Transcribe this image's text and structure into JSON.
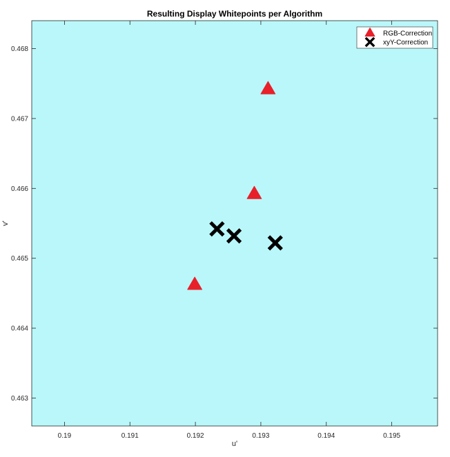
{
  "chart_data": {
    "type": "scatter",
    "title": "Resulting Display Whitepoints per Algorithm",
    "xlabel": "u'",
    "ylabel": "v'",
    "xlim": [
      0.1895,
      0.1957
    ],
    "ylim": [
      0.4626,
      0.4684
    ],
    "xticks": [
      0.19,
      0.191,
      0.192,
      0.193,
      0.194,
      0.195
    ],
    "yticks": [
      0.463,
      0.464,
      0.465,
      0.466,
      0.467,
      0.468
    ],
    "xtick_labels": [
      "0.19",
      "0.191",
      "0.192",
      "0.193",
      "0.194",
      "0.195"
    ],
    "ytick_labels": [
      "0.463",
      "0.464",
      "0.465",
      "0.466",
      "0.467",
      "0.468"
    ],
    "grid": false,
    "legend_position": "top-right",
    "background_color": "#b9f7fa",
    "series": [
      {
        "name": "RGB-Correction",
        "marker": "triangle",
        "color": "#e8202a",
        "points": [
          {
            "x": 0.19311,
            "y": 0.46742
          },
          {
            "x": 0.1929,
            "y": 0.46592
          },
          {
            "x": 0.19199,
            "y": 0.46462
          }
        ]
      },
      {
        "name": "xyY-Correction",
        "marker": "x",
        "color": "#000000",
        "points": [
          {
            "x": 0.19233,
            "y": 0.46542
          },
          {
            "x": 0.19259,
            "y": 0.46532
          },
          {
            "x": 0.19322,
            "y": 0.46522
          }
        ]
      }
    ]
  }
}
